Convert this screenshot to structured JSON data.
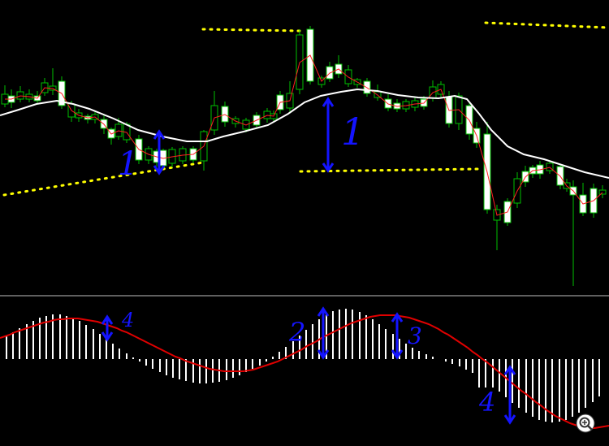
{
  "chart_data": [
    {
      "type": "candlestick",
      "panel": "price",
      "title": "",
      "background": "#000000",
      "bull_color": "#00c000",
      "bear_body_fill": "#ffffff",
      "bull_body_fill": "#000000",
      "grid": false,
      "moving_average_color": "#ffffff",
      "ohlc_trend_line_color": "#ff2020",
      "levels": [
        {
          "name": "resistance-top-left",
          "color": "#ffff00"
        },
        {
          "name": "resistance-top-right",
          "color": "#ffff00"
        },
        {
          "name": "support-mid",
          "color": "#ffff00"
        },
        {
          "name": "support-rising-left",
          "color": "#ffff00"
        }
      ]
    },
    {
      "type": "histogram",
      "panel": "oscillator",
      "bar_color": "#ffffff",
      "signal_line_color": "#e00000",
      "separator_color": "#bfbfbf"
    }
  ],
  "annotations": {
    "color": "#1414ff",
    "labels": [
      "1",
      "1",
      "4",
      "2",
      "3",
      "4"
    ]
  },
  "icons": {
    "zoom": "zoom-in-icon"
  }
}
